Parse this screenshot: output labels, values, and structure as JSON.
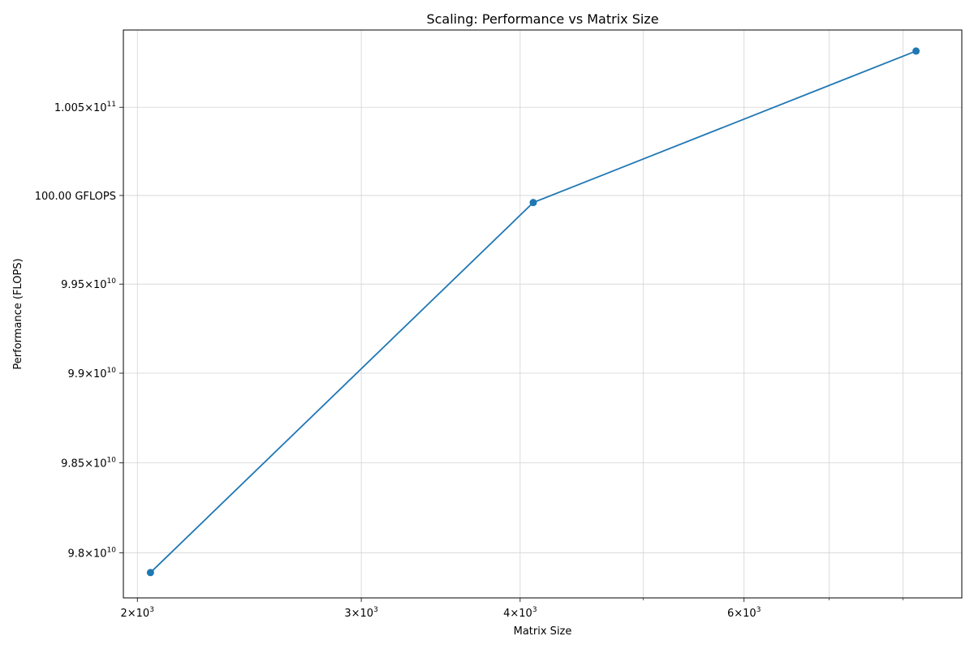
{
  "chart_data": {
    "type": "line",
    "title": "Scaling: Performance vs Matrix Size",
    "xlabel": "Matrix Size",
    "ylabel": "Performance (FLOPS)",
    "x_scale": "log",
    "y_scale": "log",
    "grid": true,
    "legend": false,
    "xlim": [
      1950,
      8900
    ],
    "ylim": [
      97750000000,
      100940000000
    ],
    "x_ticks": [
      {
        "value": 2000,
        "base": "2",
        "exp": "3"
      },
      {
        "value": 3000,
        "base": "3",
        "exp": "3"
      },
      {
        "value": 4000,
        "base": "4",
        "exp": "3"
      },
      {
        "value": 6000,
        "base": "6",
        "exp": "3"
      }
    ],
    "x_minor_ticks": [
      5000,
      7000,
      8000
    ],
    "y_ticks": [
      {
        "value": 98000000000,
        "base": "9.8",
        "exp": "10"
      },
      {
        "value": 98500000000,
        "base": "9.85",
        "exp": "10"
      },
      {
        "value": 99000000000,
        "base": "9.9",
        "exp": "10"
      },
      {
        "value": 99500000000,
        "base": "9.95",
        "exp": "10"
      },
      {
        "value": 100000000000,
        "text": "100.00 GFLOPS"
      },
      {
        "value": 100500000000,
        "base": "1.005",
        "exp": "11"
      }
    ],
    "series": [
      {
        "color": "#1f77b4",
        "marker": "circle",
        "points": [
          {
            "x": 2048,
            "y": 97890000000
          },
          {
            "x": 4096,
            "y": 99960000000
          },
          {
            "x": 8192,
            "y": 100820000000
          }
        ]
      }
    ]
  }
}
